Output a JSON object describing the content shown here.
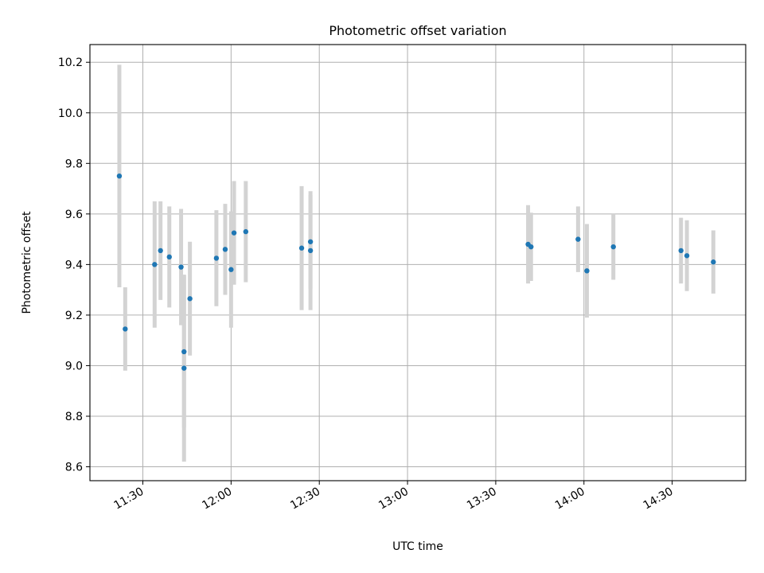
{
  "chart_data": {
    "type": "scatter",
    "title": "Photometric offset variation",
    "xlabel": "UTC time",
    "ylabel": "Photometric offset",
    "grid": true,
    "legend": "none",
    "x_unit": "UTC time (HH:MM)",
    "xlim": [
      "11:12",
      "14:55"
    ],
    "ylim": [
      8.545,
      10.27
    ],
    "xticks": [
      "11:30",
      "12:00",
      "12:30",
      "13:00",
      "13:30",
      "14:00",
      "14:30"
    ],
    "yticks": [
      "8.6",
      "8.8",
      "9.0",
      "9.2",
      "9.4",
      "9.6",
      "9.8",
      "10.0",
      "10.2"
    ],
    "colors": {
      "marker": "#1f77b4",
      "errorbar": "#d3d3d3",
      "grid": "#b0b0b0"
    },
    "points": [
      {
        "time": "11:22",
        "y": 9.75,
        "yerr": 0.44
      },
      {
        "time": "11:24",
        "y": 9.145,
        "yerr": 0.165
      },
      {
        "time": "11:34",
        "y": 9.4,
        "yerr": 0.25
      },
      {
        "time": "11:36",
        "y": 9.455,
        "yerr": 0.195
      },
      {
        "time": "11:39",
        "y": 9.43,
        "yerr": 0.2
      },
      {
        "time": "11:43",
        "y": 9.39,
        "yerr": 0.23
      },
      {
        "time": "11:44",
        "y": 9.055,
        "yerr": 0.3
      },
      {
        "time": "11:44",
        "y": 8.99,
        "yerr": 0.37
      },
      {
        "time": "11:46",
        "y": 9.265,
        "yerr": 0.225
      },
      {
        "time": "11:55",
        "y": 9.425,
        "yerr": 0.19
      },
      {
        "time": "11:58",
        "y": 9.46,
        "yerr": 0.18
      },
      {
        "time": "12:00",
        "y": 9.38,
        "yerr": 0.23
      },
      {
        "time": "12:01",
        "y": 9.525,
        "yerr": 0.205
      },
      {
        "time": "12:05",
        "y": 9.53,
        "yerr": 0.2
      },
      {
        "time": "12:24",
        "y": 9.465,
        "yerr": 0.245
      },
      {
        "time": "12:27",
        "y": 9.49,
        "yerr": 0.185
      },
      {
        "time": "12:27",
        "y": 9.455,
        "yerr": 0.235
      },
      {
        "time": "13:41",
        "y": 9.48,
        "yerr": 0.155
      },
      {
        "time": "13:42",
        "y": 9.47,
        "yerr": 0.135
      },
      {
        "time": "13:58",
        "y": 9.5,
        "yerr": 0.13
      },
      {
        "time": "14:01",
        "y": 9.375,
        "yerr": 0.185
      },
      {
        "time": "14:10",
        "y": 9.47,
        "yerr": 0.13
      },
      {
        "time": "14:33",
        "y": 9.455,
        "yerr": 0.13
      },
      {
        "time": "14:35",
        "y": 9.435,
        "yerr": 0.14
      },
      {
        "time": "14:44",
        "y": 9.41,
        "yerr": 0.125
      }
    ]
  }
}
